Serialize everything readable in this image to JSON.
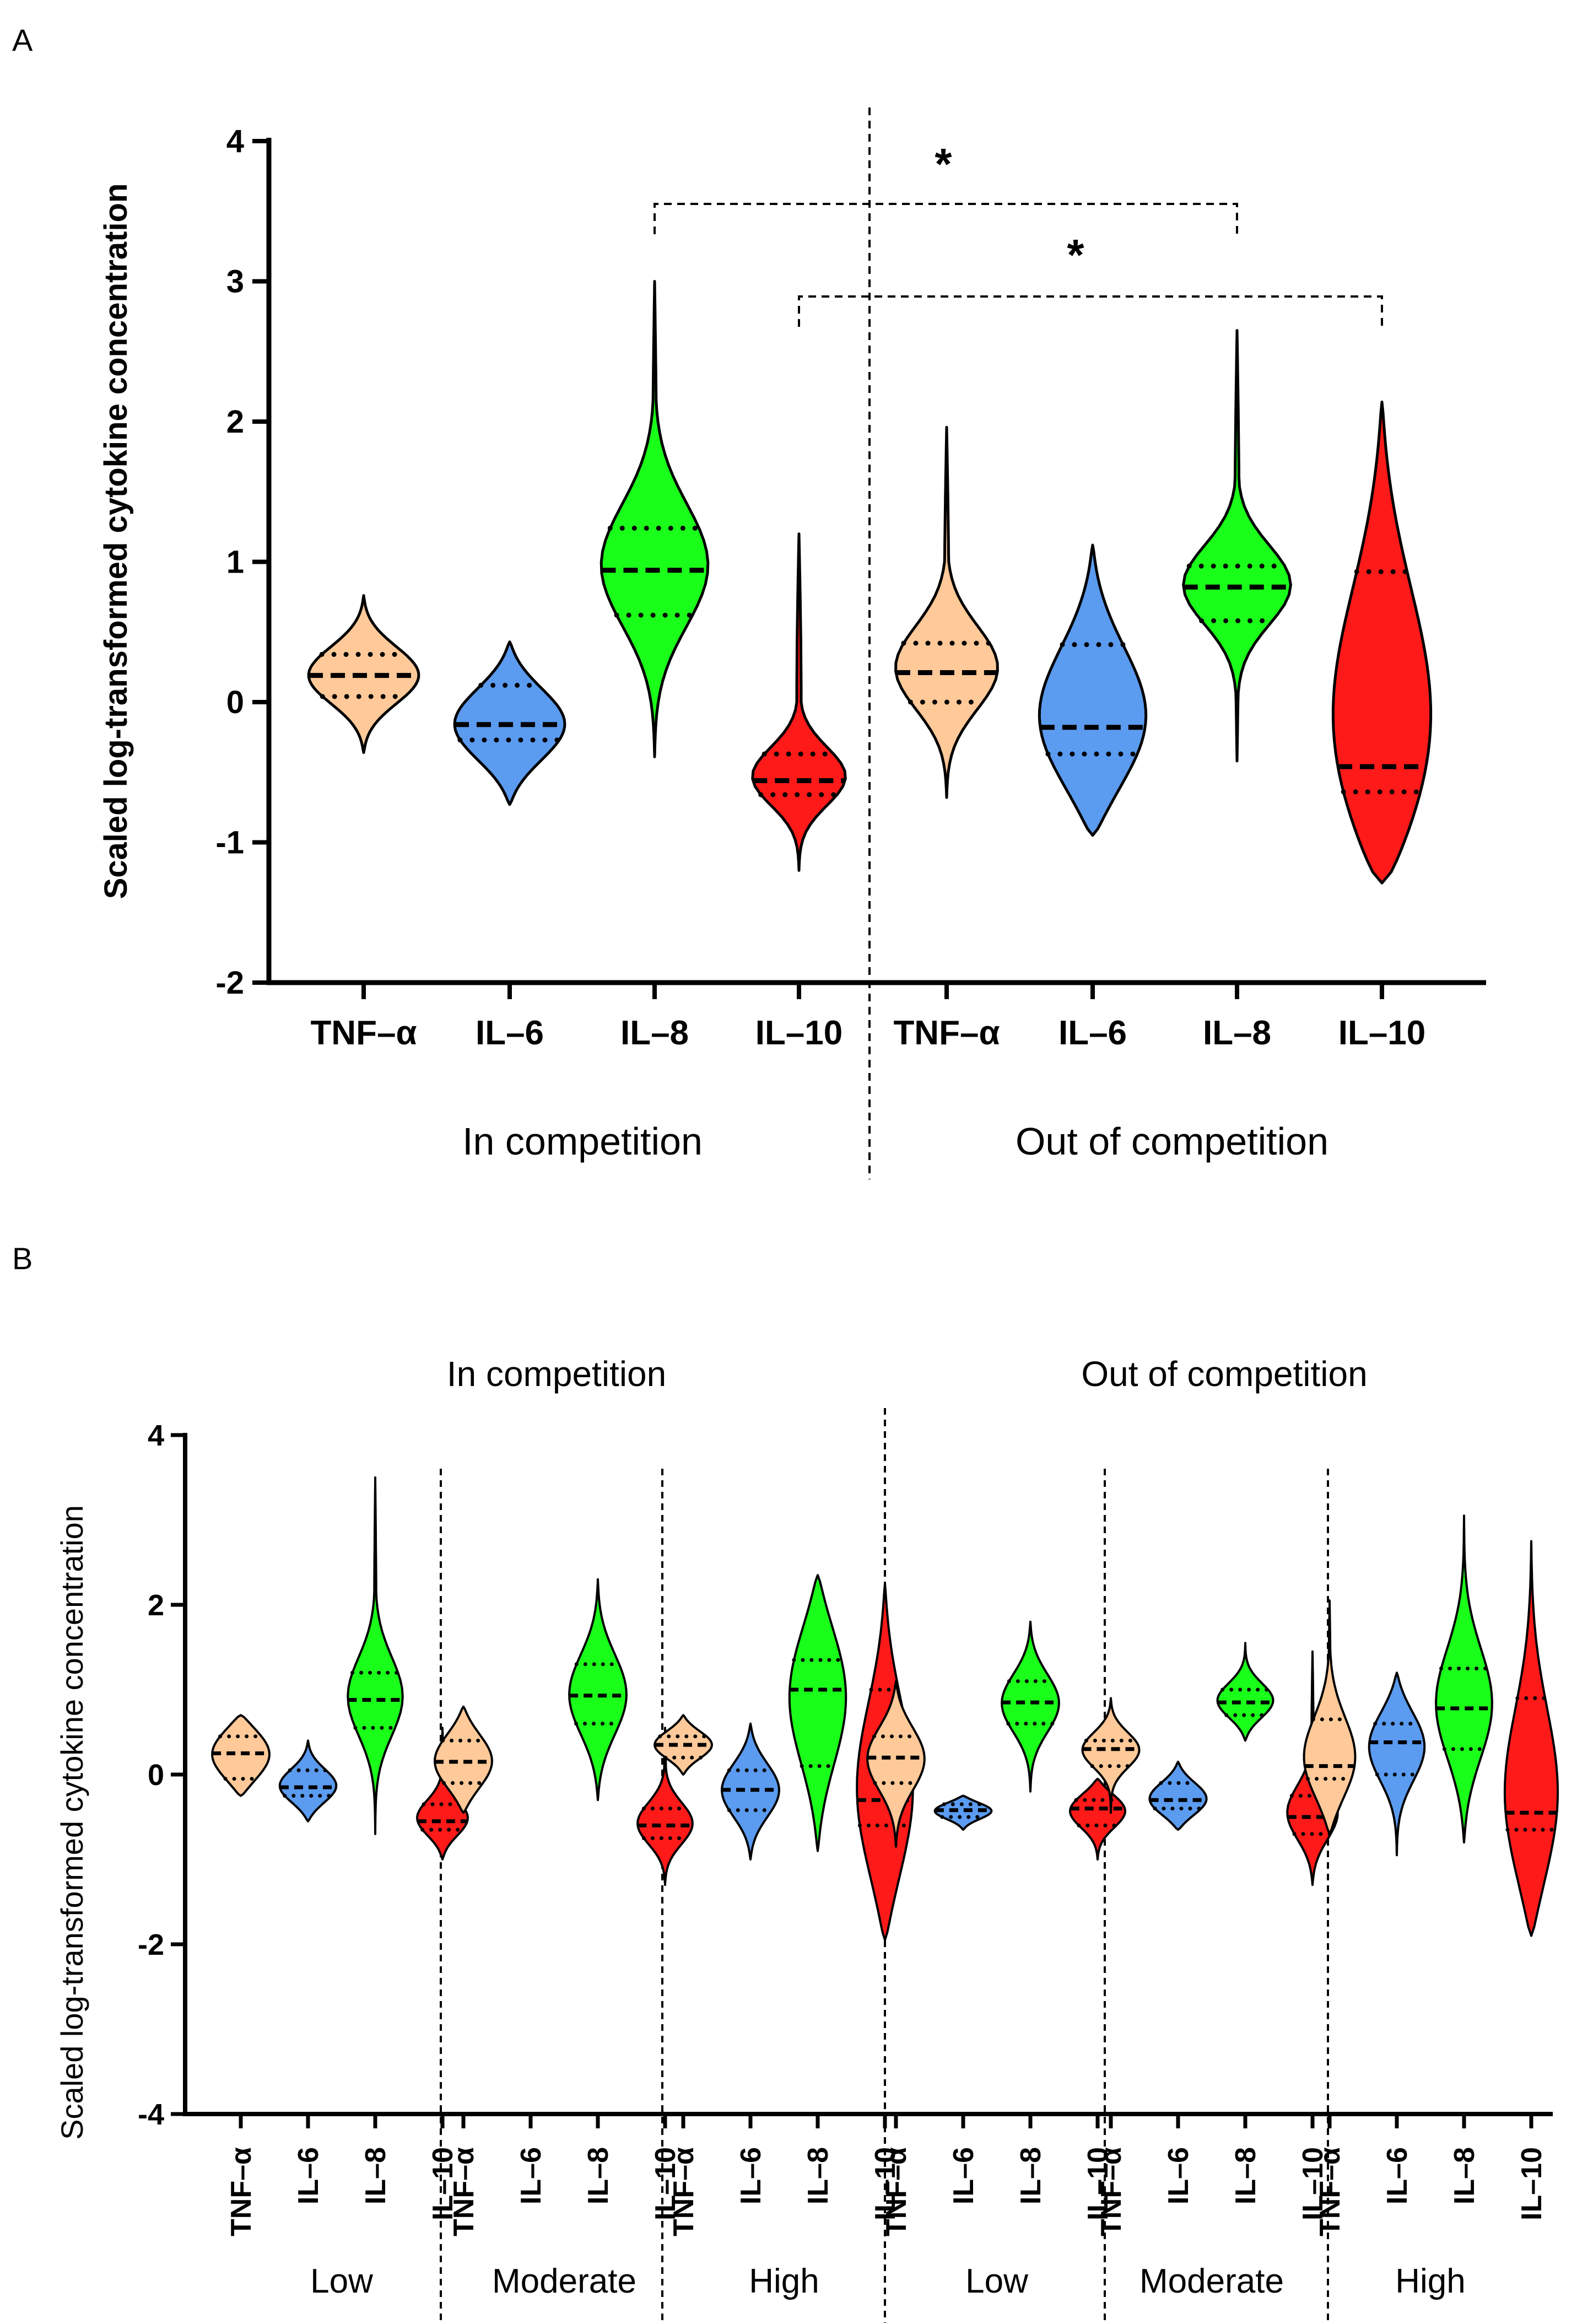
{
  "chart_data": [
    {
      "panel_label": "A",
      "type": "violin",
      "ylabel": "Scaled log-transformed cytokine concentration",
      "ylim": [
        -2,
        4
      ],
      "yticks": [
        "4",
        "3",
        "2",
        "1",
        "0",
        "-1",
        "-2"
      ],
      "groups": [
        {
          "name": "In competition",
          "categories": [
            "TNF–α",
            "IL–6",
            "IL–8",
            "IL–10"
          ]
        },
        {
          "name": "Out of competition",
          "categories": [
            "TNF–α",
            "IL–6",
            "IL–8",
            "IL–10"
          ]
        }
      ],
      "violins": [
        {
          "group": 0,
          "cytokine": "TNF-a",
          "color": "#FFC999",
          "median": 0.19,
          "q1": 0.04,
          "q3": 0.34,
          "min": -0.36,
          "max": 0.76
        },
        {
          "group": 0,
          "cytokine": "IL-6",
          "color": "#5B9BF0",
          "median": -0.16,
          "q1": -0.27,
          "q3": 0.12,
          "min": -0.73,
          "max": 0.43
        },
        {
          "group": 0,
          "cytokine": "IL-8",
          "color": "#1AFF1A",
          "median": 0.94,
          "q1": 0.62,
          "q3": 1.24,
          "min": -0.39,
          "max": 3.0
        },
        {
          "group": 0,
          "cytokine": "IL-10",
          "color": "#FF1A1A",
          "median": -0.56,
          "q1": -0.66,
          "q3": -0.37,
          "min": -1.2,
          "max": 1.2
        },
        {
          "group": 1,
          "cytokine": "TNF-a",
          "color": "#FFC999",
          "median": 0.21,
          "q1": 0.0,
          "q3": 0.42,
          "min": -0.68,
          "max": 1.96
        },
        {
          "group": 1,
          "cytokine": "IL-6",
          "color": "#5B9BF0",
          "median": -0.18,
          "q1": -0.37,
          "q3": 0.41,
          "min": -0.95,
          "max": 1.12
        },
        {
          "group": 1,
          "cytokine": "IL-8",
          "color": "#1AFF1A",
          "median": 0.82,
          "q1": 0.58,
          "q3": 0.97,
          "min": -0.42,
          "max": 2.65
        },
        {
          "group": 1,
          "cytokine": "IL-10",
          "color": "#FF1A1A",
          "median": -0.46,
          "q1": -0.64,
          "q3": 0.93,
          "min": -1.29,
          "max": 2.14
        }
      ],
      "significance": [
        {
          "from": "In competition IL-8",
          "to": "Out of competition IL-8",
          "label": "*"
        },
        {
          "from": "In competition IL-10",
          "to": "Out of competition IL-10",
          "label": "*"
        }
      ]
    },
    {
      "panel_label": "B",
      "type": "violin",
      "ylabel": "Scaled log-transformed cytokine concentration",
      "ylim": [
        -4,
        4
      ],
      "yticks": [
        "4",
        "2",
        "0",
        "-2",
        "-4"
      ],
      "competition_labels": [
        "In competition",
        "Out of competition"
      ],
      "level_labels": [
        "Low",
        "Moderate",
        "High",
        "Low",
        "Moderate",
        "High"
      ],
      "tick_labels": [
        "TNF–α",
        "IL–6",
        "IL–8",
        "IL–10"
      ],
      "violins": [
        {
          "level": 0,
          "cytokine": "TNF-a",
          "median": 0.25,
          "q1": -0.05,
          "q3": 0.45,
          "min": -0.25,
          "max": 0.7
        },
        {
          "level": 0,
          "cytokine": "IL-6",
          "median": -0.15,
          "q1": -0.25,
          "q3": 0.05,
          "min": -0.55,
          "max": 0.4
        },
        {
          "level": 0,
          "cytokine": "IL-8",
          "median": 0.88,
          "q1": 0.55,
          "q3": 1.2,
          "min": -0.7,
          "max": 3.5
        },
        {
          "level": 0,
          "cytokine": "IL-10",
          "median": -0.55,
          "q1": -0.65,
          "q3": -0.35,
          "min": -1.0,
          "max": 0.55
        },
        {
          "level": 1,
          "cytokine": "TNF-a",
          "median": 0.15,
          "q1": -0.1,
          "q3": 0.4,
          "min": -0.45,
          "max": 0.8
        },
        {
          "level": 1,
          "cytokine": "IL-8",
          "median": 0.93,
          "q1": 0.6,
          "q3": 1.3,
          "min": -0.3,
          "max": 2.3
        },
        {
          "level": 1,
          "cytokine": "IL-10",
          "median": -0.6,
          "q1": -0.75,
          "q3": -0.4,
          "min": -1.3,
          "max": 0.55
        },
        {
          "level": 2,
          "cytokine": "TNF-a",
          "median": 0.35,
          "q1": 0.2,
          "q3": 0.45,
          "min": 0.0,
          "max": 0.7
        },
        {
          "level": 2,
          "cytokine": "IL-6",
          "median": -0.18,
          "q1": -0.42,
          "q3": 0.05,
          "min": -1.0,
          "max": 0.6
        },
        {
          "level": 2,
          "cytokine": "IL-8",
          "median": 1.0,
          "q1": 0.1,
          "q3": 1.35,
          "min": -0.9,
          "max": 2.35
        },
        {
          "level": 2,
          "cytokine": "IL-10",
          "median": -0.3,
          "q1": -0.6,
          "q3": 1.0,
          "min": -1.95,
          "max": 2.25
        },
        {
          "level": 3,
          "cytokine": "TNF-a",
          "median": 0.2,
          "q1": -0.1,
          "q3": 0.45,
          "min": -0.85,
          "max": 1.1
        },
        {
          "level": 3,
          "cytokine": "IL-6",
          "median": -0.42,
          "q1": -0.5,
          "q3": -0.35,
          "min": -0.65,
          "max": -0.25
        },
        {
          "level": 3,
          "cytokine": "IL-8",
          "median": 0.85,
          "q1": 0.6,
          "q3": 1.1,
          "min": -0.2,
          "max": 1.8
        },
        {
          "level": 3,
          "cytokine": "IL-10",
          "median": -0.4,
          "q1": -0.6,
          "q3": -0.3,
          "min": -1.0,
          "max": -0.05
        },
        {
          "level": 4,
          "cytokine": "TNF-a",
          "median": 0.3,
          "q1": 0.1,
          "q3": 0.4,
          "min": -0.45,
          "max": 0.9
        },
        {
          "level": 4,
          "cytokine": "IL-6",
          "median": -0.3,
          "q1": -0.4,
          "q3": -0.1,
          "min": -0.65,
          "max": 0.15
        },
        {
          "level": 4,
          "cytokine": "IL-8",
          "median": 0.85,
          "q1": 0.7,
          "q3": 1.0,
          "min": 0.4,
          "max": 1.55
        },
        {
          "level": 4,
          "cytokine": "IL-10",
          "median": -0.5,
          "q1": -0.7,
          "q3": -0.25,
          "min": -1.3,
          "max": 1.45
        },
        {
          "level": 5,
          "cytokine": "TNF-a",
          "median": 0.1,
          "q1": -0.05,
          "q3": 0.65,
          "min": -0.7,
          "max": 2.05
        },
        {
          "level": 5,
          "cytokine": "IL-6",
          "median": 0.38,
          "q1": 0.0,
          "q3": 0.6,
          "min": -0.95,
          "max": 1.2
        },
        {
          "level": 5,
          "cytokine": "IL-8",
          "median": 0.78,
          "q1": 0.3,
          "q3": 1.25,
          "min": -0.8,
          "max": 3.05
        },
        {
          "level": 5,
          "cytokine": "IL-10",
          "median": -0.45,
          "q1": -0.65,
          "q3": 0.9,
          "min": -1.9,
          "max": 2.75
        }
      ]
    }
  ]
}
